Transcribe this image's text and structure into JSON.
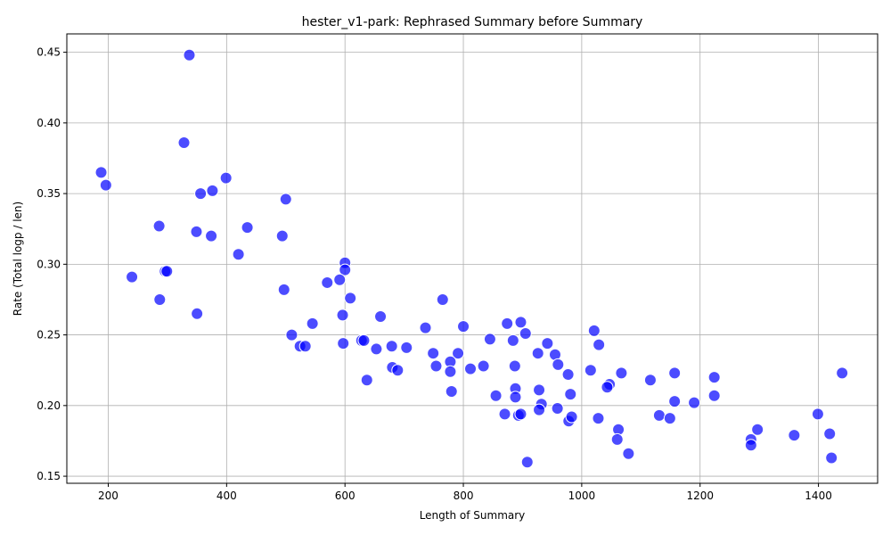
{
  "chart_data": {
    "type": "scatter",
    "title": "hester_v1-park: Rephrased Summary before Summary",
    "xlabel": "Length of Summary",
    "ylabel": "Rate (Total logp / len)",
    "xlim": [
      130,
      1500
    ],
    "ylim": [
      0.145,
      0.463
    ],
    "xticks": [
      200,
      400,
      600,
      800,
      1000,
      1200,
      1400
    ],
    "yticks": [
      0.15,
      0.2,
      0.25,
      0.3,
      0.35,
      0.4,
      0.45
    ],
    "grid": true,
    "color": "#0000ff",
    "points": [
      {
        "x": 337,
        "y": 0.448
      },
      {
        "x": 328,
        "y": 0.386
      },
      {
        "x": 188,
        "y": 0.365
      },
      {
        "x": 196,
        "y": 0.356
      },
      {
        "x": 399,
        "y": 0.361
      },
      {
        "x": 376,
        "y": 0.352
      },
      {
        "x": 356,
        "y": 0.35
      },
      {
        "x": 500,
        "y": 0.346
      },
      {
        "x": 286,
        "y": 0.327
      },
      {
        "x": 349,
        "y": 0.323
      },
      {
        "x": 374,
        "y": 0.32
      },
      {
        "x": 435,
        "y": 0.326
      },
      {
        "x": 494,
        "y": 0.32
      },
      {
        "x": 420,
        "y": 0.307
      },
      {
        "x": 296,
        "y": 0.295
      },
      {
        "x": 299,
        "y": 0.295
      },
      {
        "x": 240,
        "y": 0.291
      },
      {
        "x": 600,
        "y": 0.301
      },
      {
        "x": 600,
        "y": 0.296
      },
      {
        "x": 497,
        "y": 0.282
      },
      {
        "x": 570,
        "y": 0.287
      },
      {
        "x": 591,
        "y": 0.289
      },
      {
        "x": 609,
        "y": 0.276
      },
      {
        "x": 287,
        "y": 0.275
      },
      {
        "x": 350,
        "y": 0.265
      },
      {
        "x": 596,
        "y": 0.264
      },
      {
        "x": 660,
        "y": 0.263
      },
      {
        "x": 545,
        "y": 0.258
      },
      {
        "x": 765,
        "y": 0.275
      },
      {
        "x": 510,
        "y": 0.25
      },
      {
        "x": 524,
        "y": 0.242
      },
      {
        "x": 533,
        "y": 0.242
      },
      {
        "x": 597,
        "y": 0.244
      },
      {
        "x": 628,
        "y": 0.246
      },
      {
        "x": 632,
        "y": 0.246
      },
      {
        "x": 653,
        "y": 0.24
      },
      {
        "x": 679,
        "y": 0.242
      },
      {
        "x": 704,
        "y": 0.241
      },
      {
        "x": 736,
        "y": 0.255
      },
      {
        "x": 800,
        "y": 0.256
      },
      {
        "x": 874,
        "y": 0.258
      },
      {
        "x": 897,
        "y": 0.259
      },
      {
        "x": 905,
        "y": 0.251
      },
      {
        "x": 1021,
        "y": 0.253
      },
      {
        "x": 845,
        "y": 0.247
      },
      {
        "x": 884,
        "y": 0.246
      },
      {
        "x": 942,
        "y": 0.244
      },
      {
        "x": 1029,
        "y": 0.243
      },
      {
        "x": 749,
        "y": 0.237
      },
      {
        "x": 791,
        "y": 0.237
      },
      {
        "x": 926,
        "y": 0.237
      },
      {
        "x": 955,
        "y": 0.236
      },
      {
        "x": 637,
        "y": 0.218
      },
      {
        "x": 680,
        "y": 0.227
      },
      {
        "x": 689,
        "y": 0.225
      },
      {
        "x": 754,
        "y": 0.228
      },
      {
        "x": 778,
        "y": 0.231
      },
      {
        "x": 778,
        "y": 0.224
      },
      {
        "x": 812,
        "y": 0.226
      },
      {
        "x": 834,
        "y": 0.228
      },
      {
        "x": 887,
        "y": 0.228
      },
      {
        "x": 960,
        "y": 0.229
      },
      {
        "x": 977,
        "y": 0.222
      },
      {
        "x": 1015,
        "y": 0.225
      },
      {
        "x": 1067,
        "y": 0.223
      },
      {
        "x": 1047,
        "y": 0.215
      },
      {
        "x": 1043,
        "y": 0.213
      },
      {
        "x": 1116,
        "y": 0.218
      },
      {
        "x": 1157,
        "y": 0.223
      },
      {
        "x": 1224,
        "y": 0.22
      },
      {
        "x": 1440,
        "y": 0.223
      },
      {
        "x": 780,
        "y": 0.21
      },
      {
        "x": 855,
        "y": 0.207
      },
      {
        "x": 888,
        "y": 0.212
      },
      {
        "x": 888,
        "y": 0.206
      },
      {
        "x": 928,
        "y": 0.211
      },
      {
        "x": 981,
        "y": 0.208
      },
      {
        "x": 932,
        "y": 0.201
      },
      {
        "x": 928,
        "y": 0.197
      },
      {
        "x": 959,
        "y": 0.198
      },
      {
        "x": 1157,
        "y": 0.203
      },
      {
        "x": 1190,
        "y": 0.202
      },
      {
        "x": 1224,
        "y": 0.207
      },
      {
        "x": 870,
        "y": 0.194
      },
      {
        "x": 893,
        "y": 0.193
      },
      {
        "x": 897,
        "y": 0.194
      },
      {
        "x": 978,
        "y": 0.189
      },
      {
        "x": 983,
        "y": 0.192
      },
      {
        "x": 1028,
        "y": 0.191
      },
      {
        "x": 1131,
        "y": 0.193
      },
      {
        "x": 1149,
        "y": 0.191
      },
      {
        "x": 1399,
        "y": 0.194
      },
      {
        "x": 1062,
        "y": 0.183
      },
      {
        "x": 1060,
        "y": 0.176
      },
      {
        "x": 1297,
        "y": 0.183
      },
      {
        "x": 1286,
        "y": 0.176
      },
      {
        "x": 1286,
        "y": 0.172
      },
      {
        "x": 1359,
        "y": 0.179
      },
      {
        "x": 1419,
        "y": 0.18
      },
      {
        "x": 1079,
        "y": 0.166
      },
      {
        "x": 1422,
        "y": 0.163
      },
      {
        "x": 908,
        "y": 0.16
      }
    ]
  }
}
